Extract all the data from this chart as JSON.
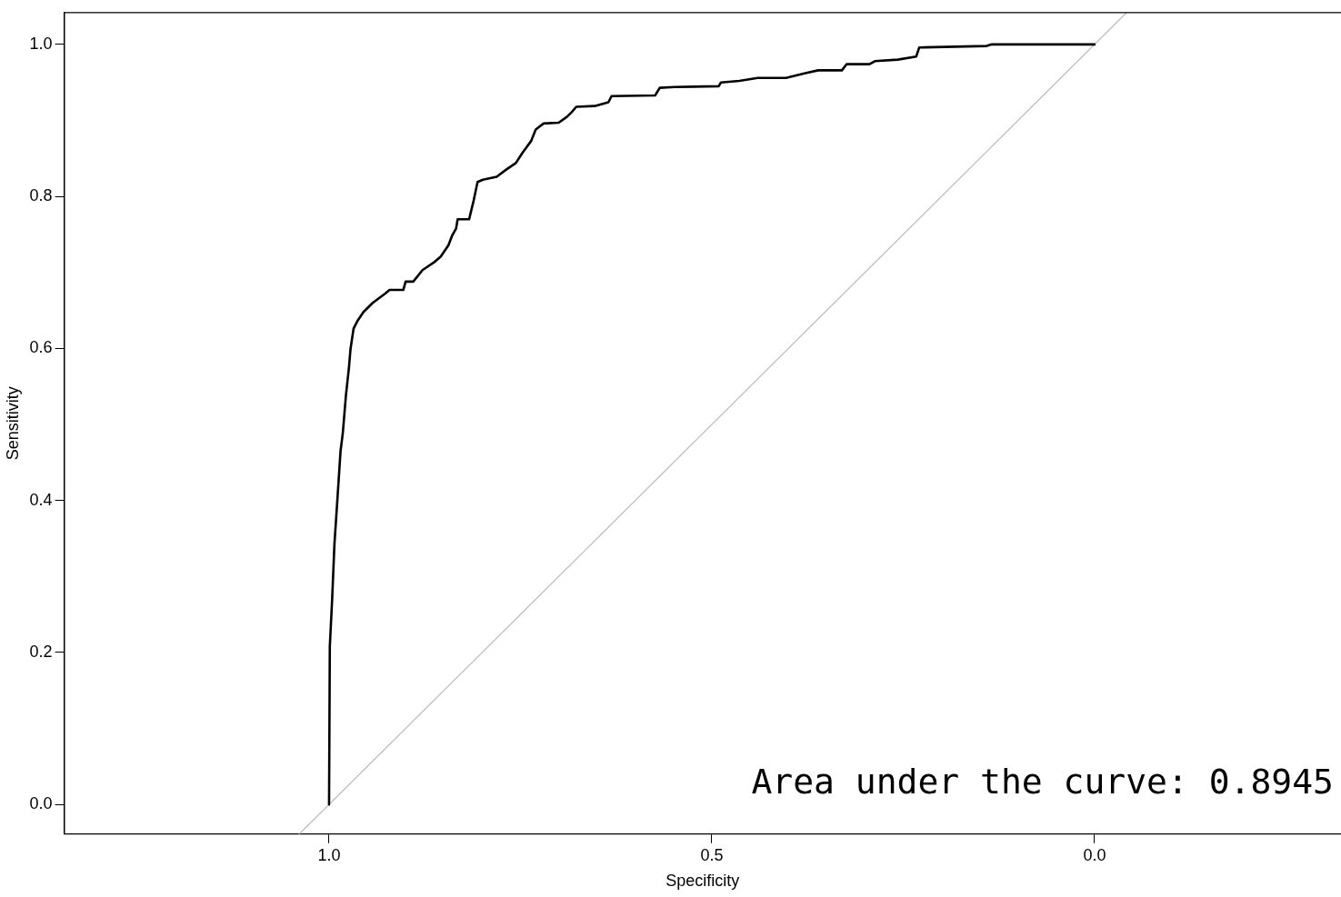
{
  "chart_data": {
    "type": "line",
    "xlabel": "Specificity",
    "ylabel": "Sensitivity",
    "xlim": [
      1.346,
      -0.322
    ],
    "ylim": [
      -0.039,
      1.042
    ],
    "xticks": [
      {
        "value": 1,
        "label": "1.0"
      },
      {
        "value": 0.5,
        "label": "0.5"
      },
      {
        "value": 0,
        "label": "0.0"
      }
    ],
    "yticks": [
      {
        "value": 0,
        "label": "0.0"
      },
      {
        "value": 0.2,
        "label": "0.2"
      },
      {
        "value": 0.4,
        "label": "0.4"
      },
      {
        "value": 0.6,
        "label": "0.6"
      },
      {
        "value": 0.8,
        "label": "0.8"
      },
      {
        "value": 1,
        "label": "1.0"
      }
    ],
    "grid": false,
    "legend": false,
    "marker": "none",
    "line_style": "solid",
    "series": [
      {
        "color": "#000000",
        "x": [
          1.0,
          0.999,
          0.996,
          0.993,
          0.989,
          0.985,
          0.982,
          0.978,
          0.974,
          0.972,
          0.968,
          0.963,
          0.955,
          0.943,
          0.927,
          0.921,
          0.903,
          0.9,
          0.89,
          0.878,
          0.862,
          0.854,
          0.844,
          0.839,
          0.834,
          0.832,
          0.817,
          0.811,
          0.806,
          0.799,
          0.781,
          0.769,
          0.756,
          0.747,
          0.736,
          0.73,
          0.72,
          0.7,
          0.689,
          0.683,
          0.677,
          0.653,
          0.635,
          0.631,
          0.574,
          0.568,
          0.549,
          0.491,
          0.488,
          0.464,
          0.44,
          0.403,
          0.379,
          0.361,
          0.33,
          0.324,
          0.294,
          0.287,
          0.257,
          0.233,
          0.229,
          0.141,
          0.135,
          0.0
        ],
        "values": [
          0,
          0.208,
          0.269,
          0.342,
          0.403,
          0.465,
          0.489,
          0.538,
          0.575,
          0.599,
          0.626,
          0.636,
          0.648,
          0.66,
          0.672,
          0.677,
          0.677,
          0.688,
          0.688,
          0.703,
          0.714,
          0.721,
          0.736,
          0.749,
          0.758,
          0.77,
          0.77,
          0.795,
          0.819,
          0.822,
          0.826,
          0.835,
          0.844,
          0.858,
          0.873,
          0.888,
          0.896,
          0.897,
          0.905,
          0.911,
          0.918,
          0.919,
          0.924,
          0.932,
          0.933,
          0.943,
          0.944,
          0.945,
          0.95,
          0.952,
          0.956,
          0.956,
          0.962,
          0.966,
          0.966,
          0.974,
          0.974,
          0.978,
          0.98,
          0.984,
          0.996,
          0.998,
          1.0,
          1.0
        ]
      },
      {
        "color": "#bebebe",
        "x": [
          1.039,
          -0.042
        ],
        "values": [
          -0.039,
          1.042
        ]
      }
    ],
    "annotations": [
      "Area under the curve: 0.8945"
    ]
  }
}
